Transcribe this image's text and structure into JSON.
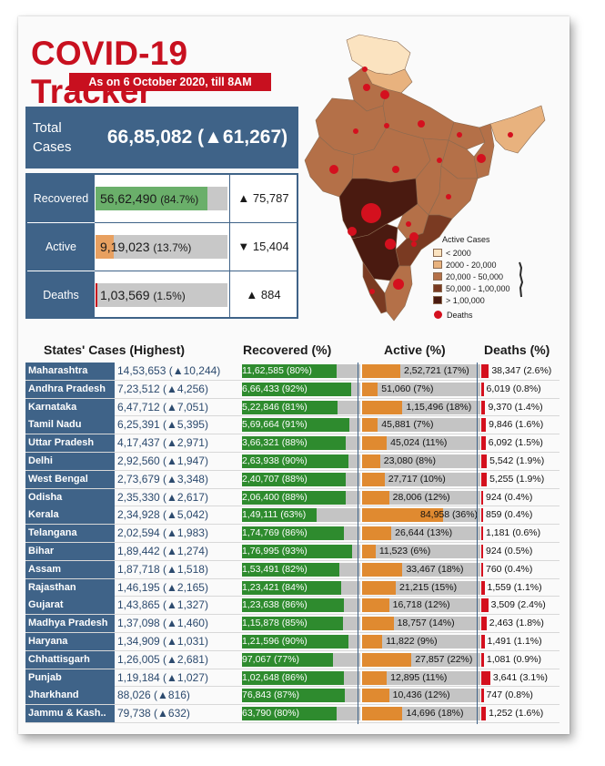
{
  "header": {
    "title": "COVID-19 Tracker",
    "subtitle": "As on 6 October 2020, till 8AM"
  },
  "summary": {
    "total_label": "Total Cases",
    "total_value": "66,85,082 (▲61,267)",
    "recovered": {
      "label": "Recovered",
      "value": "56,62,490",
      "pct": "(84.7%)",
      "fraction": 0.847,
      "change": "▲ 75,787",
      "color": "#6aaf6a"
    },
    "active": {
      "label": "Active",
      "value": "9,19,023",
      "pct": "(13.7%)",
      "fraction": 0.137,
      "change": "▼ 15,404",
      "color": "#e8a060"
    },
    "deaths": {
      "label": "Deaths",
      "value": "1,03,569",
      "pct": "(1.5%)",
      "fraction": 0.015,
      "change": "▲ 884",
      "color": "#c8101f"
    }
  },
  "map": {
    "legend_title": "Active Cases",
    "legend": [
      {
        "label": "< 2000",
        "color": "#fbe3c0"
      },
      {
        "label": "2000 - 20,000",
        "color": "#e8b27e"
      },
      {
        "label": "20,000 - 50,000",
        "color": "#b47048"
      },
      {
        "label": "50,000 - 1,00,000",
        "color": "#7a3a22"
      },
      {
        "label": "> 1,00,000",
        "color": "#4a1a10"
      }
    ],
    "deaths_label": "Deaths",
    "deaths_color": "#d4101e"
  },
  "table_headers": {
    "states": "States' Cases (Highest)",
    "recovered": "Recovered (%)",
    "active": "Active (%)",
    "deaths": "Deaths (%)"
  },
  "colors": {
    "header_blue": "#3f6388",
    "recovered_green": "#2e8b2e",
    "active_orange": "#e08a30",
    "deaths_red": "#d4101e",
    "bar_grey": "#c4c4c4"
  },
  "chart_data": {
    "type": "table",
    "columns": [
      "State",
      "Cases",
      "Recovered",
      "Active",
      "Deaths"
    ],
    "rows": [
      {
        "state": "Maharashtra",
        "cases": "14,53,653 (▲10,244)",
        "recovered": "11,62,585 (80%)",
        "rec_pct": 80,
        "active": "2,52,721 (17%)",
        "act_pct": 17,
        "deaths": "38,347 (2.6%)",
        "dth_pct": 2.6
      },
      {
        "state": "Andhra Pradesh",
        "cases": "7,23,512 (▲4,256)",
        "recovered": "6,66,433 (92%)",
        "rec_pct": 92,
        "active": "51,060 (7%)",
        "act_pct": 7,
        "deaths": "6,019 (0.8%)",
        "dth_pct": 0.8
      },
      {
        "state": "Karnataka",
        "cases": "6,47,712 (▲7,051)",
        "recovered": "5,22,846 (81%)",
        "rec_pct": 81,
        "active": "1,15,496 (18%)",
        "act_pct": 18,
        "deaths": "9,370 (1.4%)",
        "dth_pct": 1.4
      },
      {
        "state": "Tamil Nadu",
        "cases": "6,25,391 (▲5,395)",
        "recovered": "5,69,664 (91%)",
        "rec_pct": 91,
        "active": "45,881 (7%)",
        "act_pct": 7,
        "deaths": "9,846 (1.6%)",
        "dth_pct": 1.6
      },
      {
        "state": "Uttar Pradesh",
        "cases": "4,17,437 (▲2,971)",
        "recovered": "3,66,321 (88%)",
        "rec_pct": 88,
        "active": "45,024 (11%)",
        "act_pct": 11,
        "deaths": "6,092 (1.5%)",
        "dth_pct": 1.5
      },
      {
        "state": "Delhi",
        "cases": "2,92,560 (▲1,947)",
        "recovered": "2,63,938 (90%)",
        "rec_pct": 90,
        "active": "23,080 (8%)",
        "act_pct": 8,
        "deaths": "5,542 (1.9%)",
        "dth_pct": 1.9
      },
      {
        "state": "West Bengal",
        "cases": "2,73,679 (▲3,348)",
        "recovered": "2,40,707 (88%)",
        "rec_pct": 88,
        "active": "27,717 (10%)",
        "act_pct": 10,
        "deaths": "5,255 (1.9%)",
        "dth_pct": 1.9
      },
      {
        "state": "Odisha",
        "cases": "2,35,330 (▲2,617)",
        "recovered": "2,06,400 (88%)",
        "rec_pct": 88,
        "active": "28,006 (12%)",
        "act_pct": 12,
        "deaths": "924 (0.4%)",
        "dth_pct": 0.4
      },
      {
        "state": "Kerala",
        "cases": "2,34,928 (▲5,042)",
        "recovered": "1,49,111 (63%)",
        "rec_pct": 63,
        "active": "84,958 (36%)",
        "act_pct": 36,
        "deaths": "859 (0.4%)",
        "dth_pct": 0.4
      },
      {
        "state": "Telangana",
        "cases": "2,02,594 (▲1,983)",
        "recovered": "1,74,769 (86%)",
        "rec_pct": 86,
        "active": "26,644 (13%)",
        "act_pct": 13,
        "deaths": "1,181 (0.6%)",
        "dth_pct": 0.6
      },
      {
        "state": "Bihar",
        "cases": "1,89,442 (▲1,274)",
        "recovered": "1,76,995 (93%)",
        "rec_pct": 93,
        "active": "11,523 (6%)",
        "act_pct": 6,
        "deaths": "924 (0.5%)",
        "dth_pct": 0.5
      },
      {
        "state": "Assam",
        "cases": "1,87,718 (▲1,518)",
        "recovered": "1,53,491 (82%)",
        "rec_pct": 82,
        "active": "33,467 (18%)",
        "act_pct": 18,
        "deaths": "760 (0.4%)",
        "dth_pct": 0.4
      },
      {
        "state": "Rajasthan",
        "cases": "1,46,195 (▲2,165)",
        "recovered": "1,23,421 (84%)",
        "rec_pct": 84,
        "active": "21,215 (15%)",
        "act_pct": 15,
        "deaths": "1,559 (1.1%)",
        "dth_pct": 1.1
      },
      {
        "state": "Gujarat",
        "cases": "1,43,865 (▲1,327)",
        "recovered": "1,23,638 (86%)",
        "rec_pct": 86,
        "active": "16,718 (12%)",
        "act_pct": 12,
        "deaths": "3,509 (2.4%)",
        "dth_pct": 2.4
      },
      {
        "state": "Madhya Pradesh",
        "cases": "1,37,098 (▲1,460)",
        "recovered": "1,15,878 (85%)",
        "rec_pct": 85,
        "active": "18,757 (14%)",
        "act_pct": 14,
        "deaths": "2,463 (1.8%)",
        "dth_pct": 1.8
      },
      {
        "state": "Haryana",
        "cases": "1,34,909 (▲1,031)",
        "recovered": "1,21,596 (90%)",
        "rec_pct": 90,
        "active": "11,822 (9%)",
        "act_pct": 9,
        "deaths": "1,491 (1.1%)",
        "dth_pct": 1.1
      },
      {
        "state": "Chhattisgarh",
        "cases": "1,26,005 (▲2,681)",
        "recovered": "97,067 (77%)",
        "rec_pct": 77,
        "active": "27,857 (22%)",
        "act_pct": 22,
        "deaths": "1,081 (0.9%)",
        "dth_pct": 0.9
      },
      {
        "state": "Punjab",
        "cases": "1,19,184 (▲1,027)",
        "recovered": "1,02,648 (86%)",
        "rec_pct": 86,
        "active": "12,895 (11%)",
        "act_pct": 11,
        "deaths": "3,641 (3.1%)",
        "dth_pct": 3.1
      },
      {
        "state": "Jharkhand",
        "cases": "88,026 (▲816)",
        "recovered": "76,843 (87%)",
        "rec_pct": 87,
        "active": "10,436 (12%)",
        "act_pct": 12,
        "deaths": "747 (0.8%)",
        "dth_pct": 0.8
      },
      {
        "state": "Jammu & Kash..",
        "cases": "79,738 (▲632)",
        "recovered": "63,790 (80%)",
        "rec_pct": 80,
        "active": "14,696 (18%)",
        "act_pct": 18,
        "deaths": "1,252 (1.6%)",
        "dth_pct": 1.6
      }
    ]
  }
}
